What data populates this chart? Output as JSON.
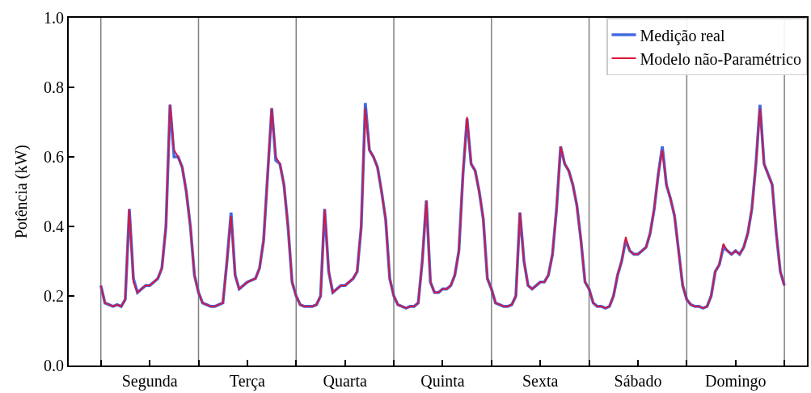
{
  "chart_data": {
    "type": "line",
    "ylabel": "Potência (kW)",
    "categories": [
      null,
      null,
      null,
      null,
      null,
      null,
      null,
      null,
      null,
      null,
      null,
      null,
      "Segunda",
      null,
      null,
      null,
      null,
      null,
      null,
      null,
      null,
      null,
      null,
      null,
      null,
      null,
      null,
      null,
      null,
      null,
      null,
      null,
      null,
      null,
      null,
      null,
      "Terça",
      null,
      null,
      null,
      null,
      null,
      null,
      null,
      null,
      null,
      null,
      null,
      null,
      null,
      null,
      null,
      null,
      null,
      null,
      null,
      null,
      null,
      null,
      null,
      "Quarta",
      null,
      null,
      null,
      null,
      null,
      null,
      null,
      null,
      null,
      null,
      null,
      null,
      null,
      null,
      null,
      null,
      null,
      null,
      null,
      null,
      null,
      null,
      null,
      "Quinta",
      null,
      null,
      null,
      null,
      null,
      null,
      null,
      null,
      null,
      null,
      null,
      null,
      null,
      null,
      null,
      null,
      null,
      null,
      null,
      null,
      null,
      null,
      null,
      "Sexta",
      null,
      null,
      null,
      null,
      null,
      null,
      null,
      null,
      null,
      null,
      null,
      null,
      null,
      null,
      null,
      null,
      null,
      null,
      null,
      null,
      null,
      null,
      null,
      "Sábado",
      null,
      null,
      null,
      null,
      null,
      null,
      null,
      null,
      null,
      null,
      null,
      null,
      null,
      null,
      null,
      null,
      null,
      null,
      null,
      null,
      null,
      null,
      null,
      "Domingo",
      null,
      null,
      null,
      null,
      null,
      null,
      null,
      null,
      null,
      null,
      null,
      null
    ],
    "series": [
      {
        "name": "Medição real",
        "color": "#4169e1",
        "values": [
          0.23,
          0.18,
          0.175,
          0.17,
          0.175,
          0.17,
          0.19,
          0.45,
          0.25,
          0.21,
          0.22,
          0.23,
          0.23,
          0.24,
          0.25,
          0.28,
          0.4,
          0.75,
          0.6,
          0.6,
          0.57,
          0.5,
          0.4,
          0.26,
          0.21,
          0.18,
          0.175,
          0.17,
          0.17,
          0.175,
          0.18,
          0.3,
          0.44,
          0.26,
          0.22,
          0.23,
          0.24,
          0.245,
          0.25,
          0.28,
          0.36,
          0.55,
          0.74,
          0.59,
          0.58,
          0.52,
          0.4,
          0.24,
          0.2,
          0.175,
          0.17,
          0.17,
          0.17,
          0.175,
          0.2,
          0.45,
          0.27,
          0.21,
          0.22,
          0.23,
          0.23,
          0.24,
          0.25,
          0.27,
          0.4,
          0.755,
          0.62,
          0.6,
          0.57,
          0.5,
          0.42,
          0.25,
          0.2,
          0.175,
          0.17,
          0.165,
          0.17,
          0.17,
          0.18,
          0.3,
          0.475,
          0.24,
          0.21,
          0.21,
          0.22,
          0.22,
          0.23,
          0.26,
          0.33,
          0.55,
          0.71,
          0.58,
          0.56,
          0.5,
          0.42,
          0.25,
          0.22,
          0.18,
          0.175,
          0.17,
          0.17,
          0.175,
          0.2,
          0.44,
          0.3,
          0.23,
          0.22,
          0.23,
          0.24,
          0.24,
          0.26,
          0.32,
          0.45,
          0.63,
          0.58,
          0.56,
          0.52,
          0.46,
          0.36,
          0.24,
          0.22,
          0.18,
          0.17,
          0.17,
          0.165,
          0.17,
          0.2,
          0.26,
          0.3,
          0.36,
          0.33,
          0.32,
          0.32,
          0.33,
          0.34,
          0.38,
          0.45,
          0.55,
          0.63,
          0.52,
          0.48,
          0.43,
          0.33,
          0.23,
          0.19,
          0.175,
          0.17,
          0.17,
          0.165,
          0.17,
          0.2,
          0.27,
          0.29,
          0.34,
          0.33,
          0.32,
          0.33,
          0.32,
          0.34,
          0.38,
          0.45,
          0.58,
          0.75,
          0.58,
          0.55,
          0.52,
          0.38,
          0.27,
          0.23
        ]
      },
      {
        "name": "Modelo não-Paramétrico",
        "color": "#dc143c",
        "values": [
          0.23,
          0.18,
          0.175,
          0.17,
          0.175,
          0.17,
          0.19,
          0.45,
          0.24,
          0.21,
          0.22,
          0.23,
          0.23,
          0.24,
          0.25,
          0.28,
          0.4,
          0.75,
          0.62,
          0.6,
          0.57,
          0.5,
          0.4,
          0.26,
          0.21,
          0.18,
          0.175,
          0.17,
          0.17,
          0.175,
          0.18,
          0.3,
          0.43,
          0.26,
          0.22,
          0.23,
          0.24,
          0.245,
          0.25,
          0.28,
          0.36,
          0.55,
          0.74,
          0.6,
          0.58,
          0.52,
          0.4,
          0.24,
          0.2,
          0.175,
          0.17,
          0.17,
          0.17,
          0.175,
          0.2,
          0.45,
          0.27,
          0.21,
          0.22,
          0.23,
          0.23,
          0.24,
          0.25,
          0.27,
          0.4,
          0.74,
          0.62,
          0.6,
          0.57,
          0.5,
          0.42,
          0.25,
          0.2,
          0.175,
          0.17,
          0.165,
          0.17,
          0.17,
          0.18,
          0.3,
          0.475,
          0.24,
          0.21,
          0.21,
          0.22,
          0.22,
          0.23,
          0.26,
          0.33,
          0.55,
          0.715,
          0.58,
          0.56,
          0.5,
          0.42,
          0.25,
          0.22,
          0.18,
          0.175,
          0.17,
          0.17,
          0.175,
          0.2,
          0.44,
          0.3,
          0.23,
          0.22,
          0.23,
          0.24,
          0.24,
          0.26,
          0.32,
          0.45,
          0.63,
          0.58,
          0.56,
          0.52,
          0.46,
          0.36,
          0.24,
          0.22,
          0.18,
          0.17,
          0.17,
          0.165,
          0.17,
          0.2,
          0.26,
          0.3,
          0.37,
          0.33,
          0.32,
          0.32,
          0.33,
          0.34,
          0.38,
          0.45,
          0.55,
          0.62,
          0.52,
          0.48,
          0.43,
          0.33,
          0.23,
          0.19,
          0.175,
          0.17,
          0.17,
          0.165,
          0.17,
          0.2,
          0.27,
          0.29,
          0.35,
          0.33,
          0.32,
          0.33,
          0.32,
          0.34,
          0.38,
          0.45,
          0.58,
          0.74,
          0.58,
          0.55,
          0.52,
          0.38,
          0.27,
          0.23
        ]
      }
    ],
    "ylim": [
      0,
      1
    ],
    "yticks": [
      {
        "value": 0,
        "label": "0.0"
      },
      {
        "value": 0.2,
        "label": "0.2"
      },
      {
        "value": 0.4,
        "label": "0.4"
      },
      {
        "value": 0.6,
        "label": "0.6"
      },
      {
        "value": 0.8,
        "label": "0.8"
      },
      {
        "value": 1,
        "label": "1.0"
      }
    ],
    "legend": "top right",
    "grid": false,
    "marker": "none",
    "line_style": "solid"
  }
}
